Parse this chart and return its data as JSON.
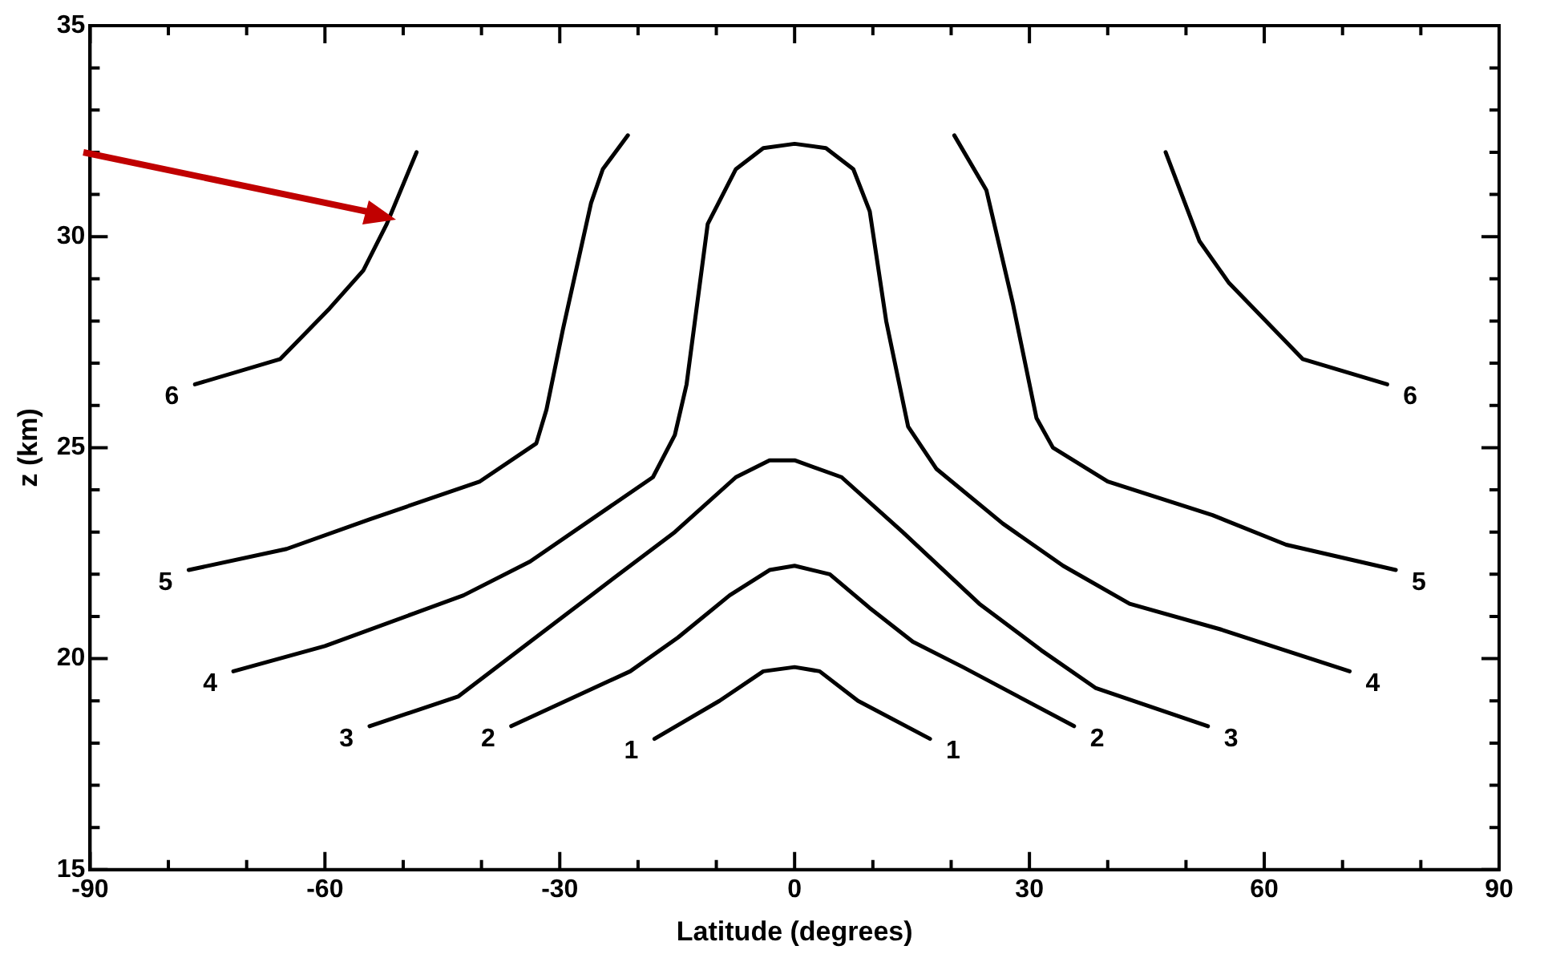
{
  "chart_data": {
    "type": "line",
    "xlabel": "Latitude (degrees)",
    "ylabel": "z (km)",
    "marker": "none",
    "line_style": "solid",
    "xlim": [
      -90,
      90
    ],
    "xticks": [
      -90,
      {
        "value": -80,
        "label": null
      },
      {
        "value": -70,
        "label": null
      },
      -60,
      {
        "value": -50,
        "label": null
      },
      {
        "value": -40,
        "label": null
      },
      -30,
      {
        "value": -20,
        "label": null
      },
      {
        "value": -10,
        "label": null
      },
      0,
      {
        "value": 10,
        "label": null
      },
      {
        "value": 20,
        "label": null
      },
      30,
      {
        "value": 40,
        "label": null
      },
      {
        "value": 50,
        "label": null
      },
      60,
      {
        "value": 70,
        "label": null
      },
      {
        "value": 80,
        "label": null
      },
      90
    ],
    "ylim": [
      15,
      35
    ],
    "yticks": [
      15,
      {
        "value": 16,
        "label": null
      },
      {
        "value": 17,
        "label": null
      },
      {
        "value": 18,
        "label": null
      },
      {
        "value": 19,
        "label": null
      },
      20,
      {
        "value": 21,
        "label": null
      },
      {
        "value": 22,
        "label": null
      },
      {
        "value": 23,
        "label": null
      },
      {
        "value": 24,
        "label": null
      },
      25,
      {
        "value": 26,
        "label": null
      },
      {
        "value": 27,
        "label": null
      },
      {
        "value": 28,
        "label": null
      },
      {
        "value": 29,
        "label": null
      },
      30,
      {
        "value": 31,
        "label": null
      },
      {
        "value": 32,
        "label": null
      },
      {
        "value": 33,
        "label": null
      },
      {
        "value": 34,
        "label": null
      },
      35
    ],
    "series": [
      {
        "name": "1",
        "color": "#000000",
        "x": [
          -17.9,
          -9.6,
          -4,
          0,
          3.2,
          8.1,
          17.3
        ],
        "values": [
          18.1,
          19.0,
          19.7,
          19.8,
          19.7,
          19.0,
          18.1
        ]
      },
      {
        "name": "2",
        "color": "#000000",
        "x": [
          -36.2,
          -21,
          -14.9,
          -8.3,
          -3.2,
          0,
          4.5,
          9.6,
          15.1,
          21.5,
          35.7
        ],
        "values": [
          18.4,
          19.7,
          20.5,
          21.5,
          22.1,
          22.2,
          22.0,
          21.2,
          20.4,
          19.8,
          18.4
        ]
      },
      {
        "name": "3",
        "color": "#000000",
        "x": [
          -54.3,
          -43,
          -35.2,
          -26,
          -15.3,
          -7.5,
          -3.2,
          0,
          6,
          13.8,
          23.6,
          31.5,
          38.5,
          52.8
        ],
        "values": [
          18.4,
          19.1,
          20.2,
          21.5,
          23.0,
          24.3,
          24.7,
          24.7,
          24.3,
          23.0,
          21.3,
          20.2,
          19.3,
          18.4
        ]
      },
      {
        "name": "4",
        "color": "#000000",
        "x": [
          -71.7,
          -60,
          -42.3,
          -33.8,
          -18.1,
          -15.3,
          -13.8,
          -11.1,
          -7.5,
          -4,
          0,
          4,
          7.5,
          9.6,
          11.7,
          14.5,
          18.1,
          26.6,
          34.3,
          42.8,
          54.3,
          70.9
        ],
        "values": [
          19.7,
          20.3,
          21.5,
          22.3,
          24.3,
          25.3,
          26.5,
          30.3,
          31.6,
          32.1,
          32.2,
          32.1,
          31.6,
          30.6,
          28.0,
          25.5,
          24.5,
          23.2,
          22.2,
          21.3,
          20.7,
          19.7
        ]
      },
      {
        "name": "5",
        "color": "#000000",
        "x": [
          -77.4,
          -64.9,
          -54.3,
          -40.2,
          -33,
          -31.7,
          -29.6,
          -26,
          -24.5,
          -21.3,
          0,
          20.4,
          24.5,
          27.9,
          30.9,
          33,
          40,
          53.4,
          62.8,
          76.8
        ],
        "values": [
          22.1,
          22.6,
          23.3,
          24.2,
          25.1,
          25.9,
          27.8,
          30.8,
          31.6,
          32.4,
          null,
          32.4,
          31.1,
          28.4,
          25.7,
          25.0,
          24.2,
          23.4,
          22.7,
          22.1
        ]
      },
      {
        "name": "6",
        "color": "#000000",
        "x": [
          -76.6,
          -65.7,
          -59.4,
          -55.1,
          -52.1,
          -48.3,
          0,
          47.4,
          51.7,
          55.5,
          64.9,
          75.7
        ],
        "values": [
          26.5,
          27.1,
          28.3,
          29.2,
          30.3,
          32.0,
          null,
          32.0,
          29.9,
          28.9,
          27.1,
          26.5
        ]
      }
    ]
  }
}
